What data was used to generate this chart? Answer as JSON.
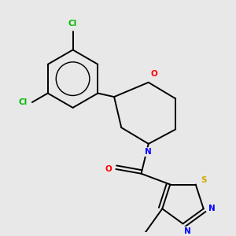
{
  "background_color": "#e8e8e8",
  "bond_color": "#000000",
  "atom_colors": {
    "Cl": "#00bb00",
    "O": "#ff0000",
    "N": "#0000ff",
    "S": "#ccaa00",
    "C": "#000000"
  },
  "lw": 1.4
}
